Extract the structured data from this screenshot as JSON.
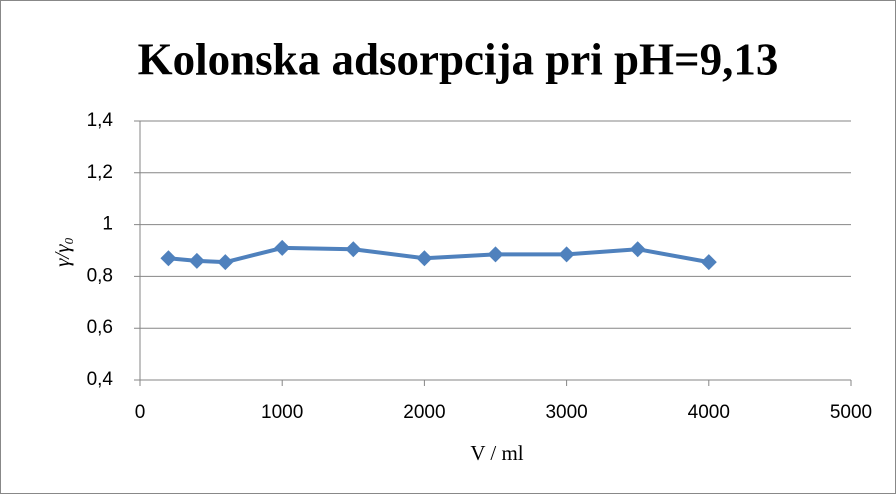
{
  "chart_data": {
    "type": "line",
    "title": "Kolonska adsorpcija pri pH=9,13",
    "x_label": "V / ml",
    "y_label": "γ/γ₀",
    "x": [
      200,
      400,
      600,
      1000,
      1500,
      2000,
      2500,
      3000,
      3500,
      4000
    ],
    "series": [
      {
        "name": "γ/γ₀",
        "color": "#4f81bd",
        "values": [
          0.87,
          0.86,
          0.855,
          0.91,
          0.905,
          0.87,
          0.885,
          0.885,
          0.905,
          0.855
        ]
      }
    ],
    "xlim": [
      0,
      5000
    ],
    "xticks": [
      0,
      1000,
      2000,
      3000,
      4000,
      5000
    ],
    "ylim": [
      0.4,
      1.4
    ],
    "yticks": [
      {
        "value": 0.4,
        "label": "0,4"
      },
      {
        "value": 0.6,
        "label": "0,6"
      },
      {
        "value": 0.8,
        "label": "0,8"
      },
      1,
      {
        "value": 1.2,
        "label": "1,2"
      },
      {
        "value": 1.4,
        "label": "1,4"
      }
    ],
    "grid": true
  }
}
